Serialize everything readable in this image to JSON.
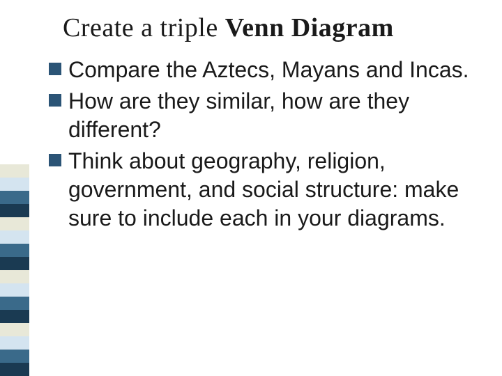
{
  "title_prefix": "Create a triple ",
  "title_bold": "Venn Diagram",
  "bullets": [
    "Compare the Aztecs, Mayans and Incas.",
    "How are they similar, how are they different?",
    "Think about geography, religion, government, and social structure: make sure to include each in your diagrams."
  ],
  "sidebar_colors": [
    "#e8e8d8",
    "#d4e4f0",
    "#3a6a8a",
    "#1a3a52",
    "#e8e8d8",
    "#d4e4f0",
    "#3a6a8a",
    "#1a3a52",
    "#e8e8d8",
    "#d4e4f0",
    "#3a6a8a",
    "#1a3a52",
    "#e8e8d8",
    "#d4e4f0",
    "#3a6a8a",
    "#1a3a52"
  ],
  "bullet_marker_color": "#2b5476"
}
